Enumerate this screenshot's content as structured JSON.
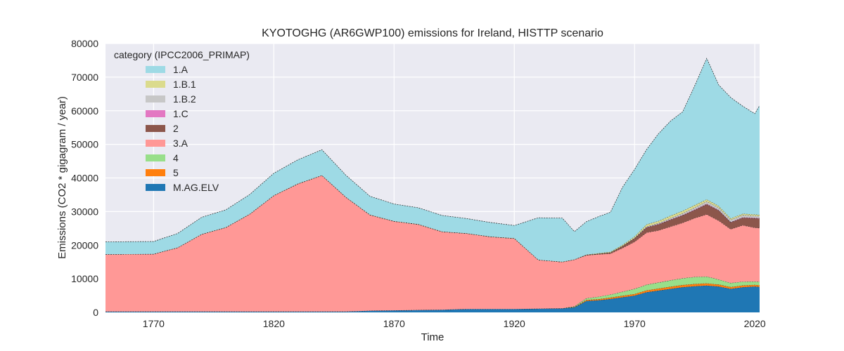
{
  "chart_data": {
    "type": "area",
    "stacked": true,
    "title": "KYOTOGHG (AR6GWP100) emissions for Ireland, HISTTP scenario",
    "xlabel": "Time",
    "ylabel": "Emissions (CO2 * gigagram / year)",
    "xlim": [
      1750,
      2022
    ],
    "ylim": [
      0,
      80000
    ],
    "xticks": [
      1770,
      1820,
      1870,
      1920,
      1970,
      2020
    ],
    "yticks": [
      0,
      10000,
      20000,
      30000,
      40000,
      50000,
      60000,
      70000,
      80000
    ],
    "grid": true,
    "legend_title": "category (IPCC2006_PRIMAP)",
    "legend_position": "top-left",
    "x": [
      1750,
      1770,
      1780,
      1790,
      1800,
      1810,
      1820,
      1830,
      1840,
      1850,
      1860,
      1870,
      1880,
      1890,
      1900,
      1910,
      1920,
      1930,
      1940,
      1945,
      1950,
      1955,
      1960,
      1965,
      1970,
      1975,
      1980,
      1985,
      1990,
      1995,
      2000,
      2005,
      2010,
      2015,
      2020,
      2022
    ],
    "series": [
      {
        "name": "M.AG.ELV",
        "color": "#1f77b4",
        "values": [
          250,
          250,
          250,
          250,
          250,
          250,
          250,
          250,
          250,
          250,
          500,
          600,
          700,
          800,
          1000,
          1000,
          1000,
          1100,
          1200,
          1500,
          3400,
          3600,
          4000,
          4500,
          5000,
          6000,
          6500,
          7000,
          7500,
          7800,
          8000,
          7700,
          7000,
          7500,
          7700,
          7600
        ]
      },
      {
        "name": "5",
        "color": "#ff7f0e",
        "values": [
          0,
          0,
          0,
          0,
          0,
          0,
          0,
          0,
          0,
          0,
          0,
          0,
          0,
          0,
          0,
          0,
          0,
          0,
          0,
          100,
          300,
          350,
          400,
          450,
          500,
          550,
          600,
          650,
          650,
          650,
          650,
          600,
          550,
          550,
          500,
          500
        ]
      },
      {
        "name": "4",
        "color": "#98df8a",
        "values": [
          0,
          0,
          0,
          0,
          0,
          0,
          0,
          0,
          0,
          0,
          0,
          0,
          0,
          0,
          0,
          0,
          0,
          0,
          0,
          200,
          500,
          700,
          900,
          1200,
          1500,
          1700,
          1800,
          1900,
          2000,
          2100,
          2000,
          1500,
          1200,
          1100,
          1000,
          1000
        ]
      },
      {
        "name": "3.A",
        "color": "#ff9896",
        "values": [
          17000,
          17100,
          19000,
          23000,
          25000,
          29000,
          34500,
          38000,
          40500,
          34000,
          28500,
          26500,
          25500,
          23200,
          22500,
          21500,
          21000,
          14500,
          13800,
          13900,
          12800,
          12600,
          12200,
          13000,
          14000,
          15500,
          15500,
          16000,
          16500,
          17500,
          18500,
          17500,
          16000,
          16800,
          16000,
          16000
        ]
      },
      {
        "name": "2",
        "color": "#8c564b",
        "values": [
          0,
          0,
          0,
          0,
          0,
          0,
          0,
          0,
          0,
          0,
          0,
          0,
          0,
          0,
          0,
          0,
          0,
          0,
          0,
          0,
          100,
          200,
          300,
          600,
          1000,
          1500,
          1800,
          2000,
          2200,
          2400,
          3000,
          3000,
          2000,
          2200,
          2800,
          2800
        ]
      },
      {
        "name": "1.C",
        "color": "#e377c2",
        "values": [
          0,
          0,
          0,
          0,
          0,
          0,
          0,
          0,
          0,
          0,
          0,
          0,
          0,
          0,
          0,
          0,
          0,
          0,
          0,
          0,
          0,
          0,
          0,
          0,
          50,
          100,
          100,
          120,
          130,
          150,
          150,
          150,
          140,
          140,
          140,
          140
        ]
      },
      {
        "name": "1.B.2",
        "color": "#c7c7c7",
        "values": [
          0,
          0,
          0,
          0,
          0,
          0,
          0,
          0,
          0,
          0,
          0,
          0,
          0,
          0,
          0,
          0,
          0,
          0,
          0,
          0,
          0,
          0,
          0,
          0,
          100,
          200,
          300,
          400,
          500,
          600,
          700,
          700,
          650,
          650,
          600,
          600
        ]
      },
      {
        "name": "1.B.1",
        "color": "#dbdb8d",
        "values": [
          50,
          50,
          50,
          50,
          50,
          50,
          50,
          50,
          50,
          50,
          50,
          50,
          50,
          50,
          50,
          50,
          50,
          50,
          50,
          50,
          100,
          150,
          200,
          300,
          400,
          600,
          600,
          700,
          700,
          700,
          600,
          500,
          400,
          400,
          400,
          400
        ]
      },
      {
        "name": "1.A",
        "color": "#9edae5",
        "values": [
          3700,
          3700,
          4200,
          5000,
          5200,
          5800,
          6600,
          7100,
          7600,
          6500,
          5500,
          5100,
          4900,
          4800,
          4400,
          4200,
          3800,
          12500,
          13000,
          8300,
          9800,
          10900,
          11800,
          17200,
          20000,
          22300,
          26000,
          28200,
          29500,
          35500,
          42000,
          36000,
          36000,
          32000,
          30000,
          32500
        ]
      }
    ]
  }
}
